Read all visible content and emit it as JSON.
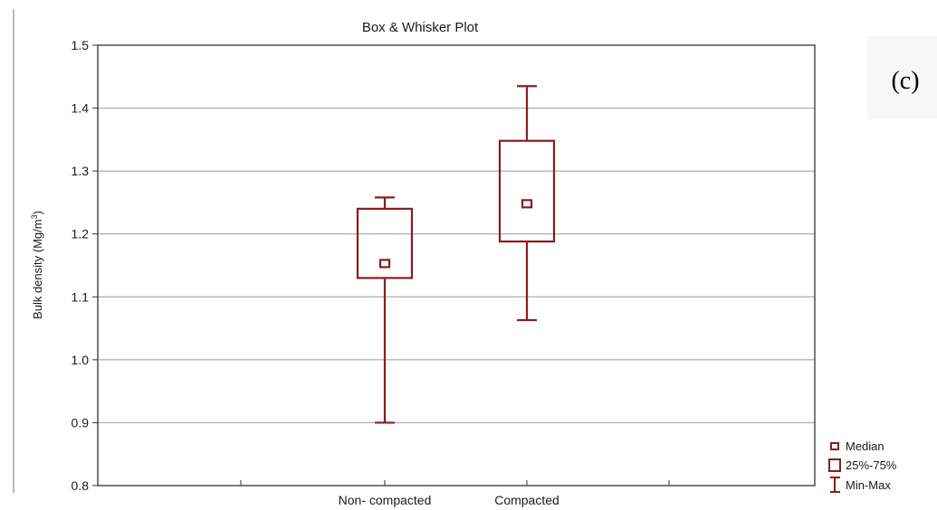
{
  "panel_label": "(c)",
  "chart_data": {
    "type": "box",
    "title": "Box & Whisker Plot",
    "xlabel": "",
    "ylabel": "Bulk density (Mg/m",
    "ylabel_sup": "3",
    "ylabel_close": ")",
    "ylim": [
      0.8,
      1.5
    ],
    "yticks": [
      "0.8",
      "0.9",
      "1.0",
      "1.1",
      "1.2",
      "1.3",
      "1.4",
      "1.5"
    ],
    "grid": true,
    "categories": [
      "Non- compacted",
      "Compacted"
    ],
    "boxes": [
      {
        "category": "Non- compacted",
        "min": 0.9,
        "q1": 1.13,
        "median": 1.153,
        "q3": 1.24,
        "max": 1.258
      },
      {
        "category": "Compacted",
        "min": 1.063,
        "q1": 1.188,
        "median": 1.248,
        "q3": 1.348,
        "max": 1.435
      }
    ],
    "legend": {
      "position": "bottom-right",
      "items": [
        "Median",
        "25%-75%",
        "Min-Max"
      ]
    },
    "color": "#8b1c1c"
  }
}
